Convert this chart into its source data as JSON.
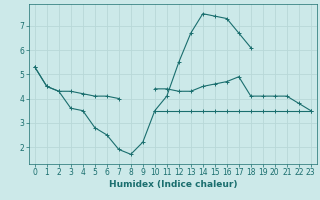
{
  "x": [
    0,
    1,
    2,
    3,
    4,
    5,
    6,
    7,
    8,
    9,
    10,
    11,
    12,
    13,
    14,
    15,
    16,
    17,
    18,
    19,
    20,
    21,
    22,
    23
  ],
  "line1": [
    5.3,
    4.5,
    4.3,
    4.3,
    4.2,
    4.1,
    4.1,
    4.0,
    null,
    null,
    4.4,
    4.4,
    4.3,
    4.3,
    4.5,
    4.6,
    4.7,
    4.9,
    4.1,
    4.1,
    4.1,
    4.1,
    3.8,
    3.5
  ],
  "line2": [
    5.3,
    4.5,
    4.3,
    3.6,
    3.5,
    2.8,
    2.5,
    1.9,
    1.7,
    2.2,
    3.5,
    4.1,
    5.5,
    6.7,
    7.5,
    7.4,
    7.3,
    6.7,
    6.1,
    null,
    null,
    null,
    null,
    null
  ],
  "line3": [
    null,
    null,
    null,
    null,
    null,
    null,
    null,
    null,
    null,
    null,
    3.5,
    3.5,
    3.5,
    3.5,
    3.5,
    3.5,
    3.5,
    3.5,
    3.5,
    3.5,
    3.5,
    3.5,
    3.5,
    3.5
  ],
  "bg_color": "#cce9e9",
  "grid_color": "#b8d8d8",
  "line_color": "#1a6e6e",
  "xlabel": "Humidex (Indice chaleur)",
  "xlabel_fontsize": 6.5,
  "tick_fontsize": 5.5,
  "ylim": [
    1.3,
    7.9
  ],
  "xlim": [
    -0.5,
    23.5
  ],
  "yticks": [
    2,
    3,
    4,
    5,
    6,
    7
  ],
  "xticks": [
    0,
    1,
    2,
    3,
    4,
    5,
    6,
    7,
    8,
    9,
    10,
    11,
    12,
    13,
    14,
    15,
    16,
    17,
    18,
    19,
    20,
    21,
    22,
    23
  ]
}
